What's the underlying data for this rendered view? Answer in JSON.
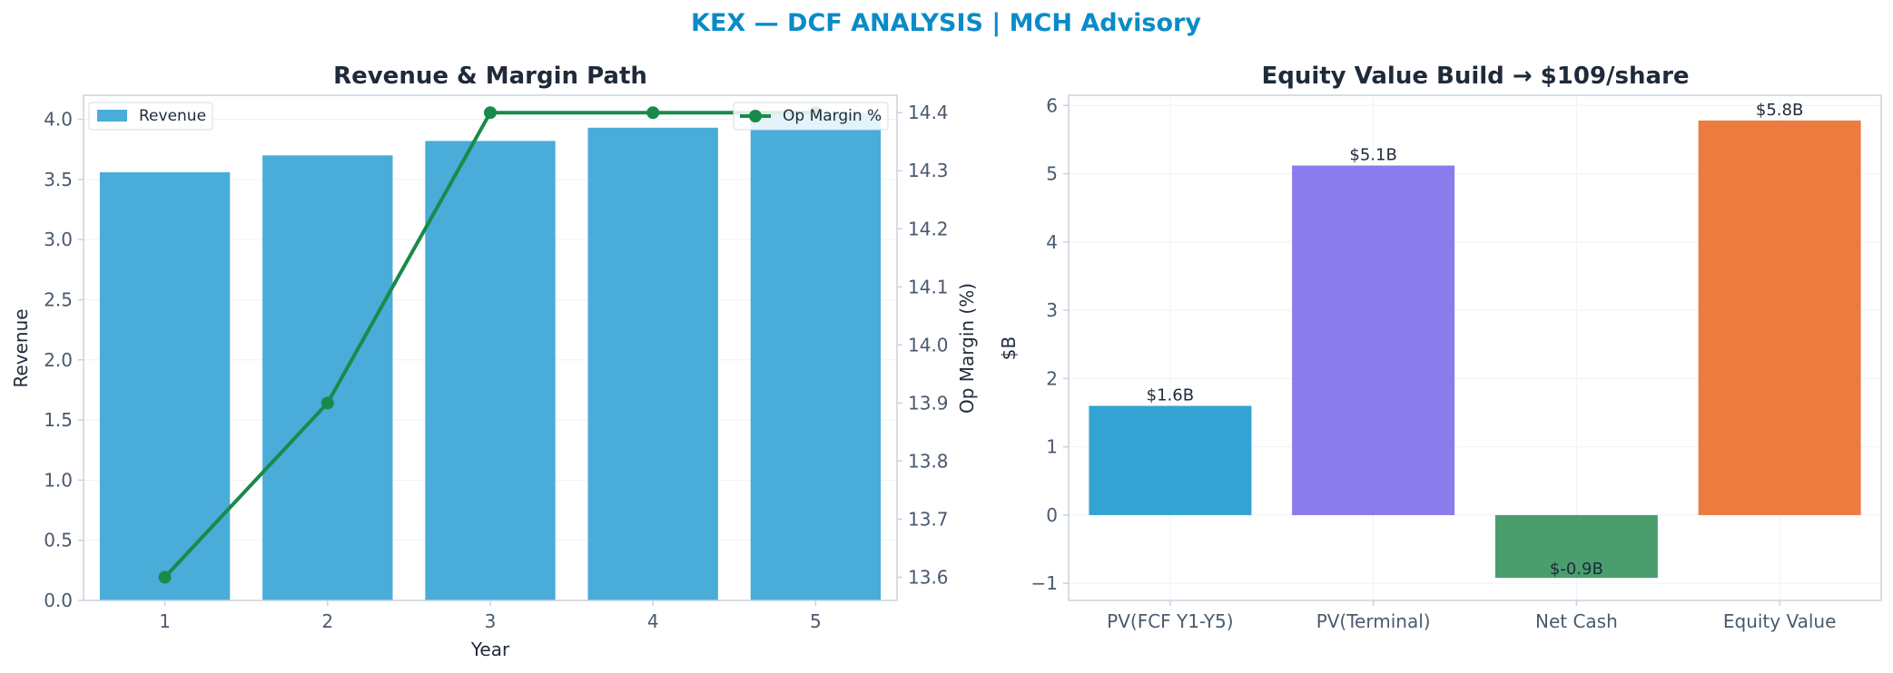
{
  "figure": {
    "suptitle": "KEX — DCF ANALYSIS | MCH Advisory",
    "title_color": "#0A8BC8",
    "text_color": "#1F2A3A",
    "tick_color": "#4A5A6E",
    "spine_color": "#C9D3DE",
    "grid_color": "#EEF2F6"
  },
  "chart_data": [
    {
      "type": "bar",
      "title": "Revenue & Margin Path",
      "xlabel": "Year",
      "ylabel": "Revenue",
      "y2label": "Op Margin (%)",
      "categories": [
        "1",
        "2",
        "3",
        "4",
        "5"
      ],
      "ylim": [
        0,
        4.2
      ],
      "yticks": [
        "0.0",
        "0.5",
        "1.0",
        "1.5",
        "2.0",
        "2.5",
        "3.0",
        "3.5",
        "4.0"
      ],
      "y2lim": [
        13.56,
        14.43
      ],
      "y2ticks": [
        "13.6",
        "13.7",
        "13.8",
        "13.9",
        "14.0",
        "14.1",
        "14.2",
        "14.3",
        "14.4"
      ],
      "grid": true,
      "series": [
        {
          "name": "Revenue",
          "type": "bar",
          "axis": "left",
          "color": "#4AACD9",
          "values": [
            3.56,
            3.7,
            3.82,
            3.93,
            4.05
          ]
        },
        {
          "name": "Op Margin %",
          "type": "line",
          "axis": "right",
          "color": "#1A8A4A",
          "values": [
            13.6,
            13.9,
            14.4,
            14.4,
            14.4
          ]
        }
      ],
      "legend_left": {
        "label": "Revenue",
        "placement": "upper-left"
      },
      "legend_right": {
        "label": "Op Margin %",
        "placement": "upper-right"
      }
    },
    {
      "type": "bar",
      "title": "Equity Value Build → $109/share",
      "xlabel": "",
      "ylabel": "$B",
      "categories": [
        "PV(FCF Y1-Y5)",
        "PV(Terminal)",
        "Net Cash",
        "Equity Value"
      ],
      "values": [
        1.6,
        5.12,
        -0.92,
        5.78
      ],
      "data_labels": [
        "$1.6B",
        "$5.1B",
        "$-0.9B",
        "$5.8B"
      ],
      "colors": [
        "#33A3D4",
        "#8A7CEC",
        "#4A9E6E",
        "#EC7B40"
      ],
      "ylim": [
        -1.25,
        6.15
      ],
      "yticks": [
        "−1",
        "0",
        "1",
        "2",
        "3",
        "4",
        "5",
        "6"
      ],
      "grid": true
    }
  ]
}
